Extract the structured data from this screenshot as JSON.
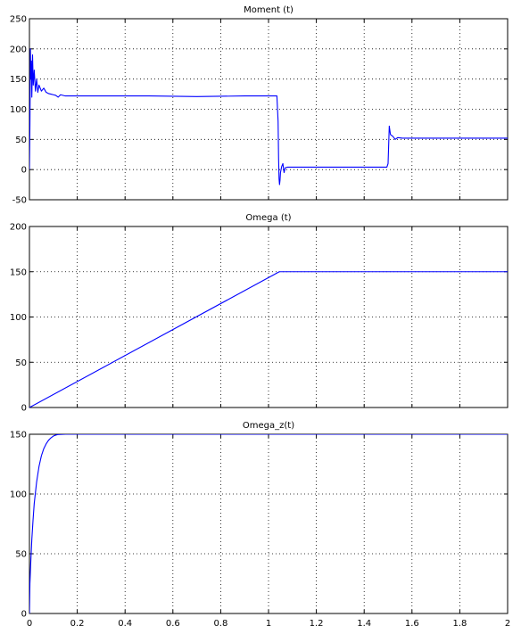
{
  "chart_data": [
    {
      "type": "line",
      "title": "Moment (t)",
      "xlabel": "",
      "ylabel": "",
      "xlim": [
        0,
        2
      ],
      "ylim": [
        -50,
        250
      ],
      "xticks": [
        0,
        0.2,
        0.4,
        0.6,
        0.8,
        1,
        1.2,
        1.4,
        1.6,
        1.8,
        2
      ],
      "yticks": [
        -50,
        0,
        50,
        100,
        150,
        200,
        250
      ],
      "show_xtick_labels": false,
      "grid": true,
      "color": "#0000ff",
      "series": [
        {
          "x": [
            0,
            0.002,
            0.004,
            0.006,
            0.008,
            0.01,
            0.013,
            0.016,
            0.02,
            0.025,
            0.03,
            0.035,
            0.04,
            0.05,
            0.06,
            0.07,
            0.08,
            0.09,
            0.1,
            0.11,
            0.12,
            0.13,
            0.15,
            0.2,
            0.3,
            0.5,
            0.7,
            0.9,
            1.035,
            1.04,
            1.042,
            1.044,
            1.046,
            1.048,
            1.05,
            1.055,
            1.06,
            1.065,
            1.07,
            1.08,
            1.09,
            1.1,
            1.2,
            1.3,
            1.4,
            1.495,
            1.5,
            1.505,
            1.51,
            1.52,
            1.53,
            1.54,
            1.56,
            1.6,
            1.8,
            2
          ],
          "y": [
            0,
            75,
            200,
            150,
            180,
            120,
            190,
            140,
            165,
            130,
            150,
            128,
            140,
            130,
            135,
            128,
            126,
            125,
            124,
            123,
            120,
            124,
            122,
            122,
            122,
            122,
            121,
            122,
            122,
            80,
            20,
            -15,
            -25,
            -18,
            -5,
            5,
            10,
            -5,
            3,
            4,
            4,
            4,
            4,
            4,
            4,
            4,
            10,
            72,
            58,
            55,
            50,
            53,
            52,
            52,
            52,
            52
          ]
        }
      ]
    },
    {
      "type": "line",
      "title": "Omega (t)",
      "xlabel": "",
      "ylabel": "",
      "xlim": [
        0,
        2
      ],
      "ylim": [
        0,
        200
      ],
      "xticks": [
        0,
        0.2,
        0.4,
        0.6,
        0.8,
        1,
        1.2,
        1.4,
        1.6,
        1.8,
        2
      ],
      "yticks": [
        0,
        50,
        100,
        150,
        200
      ],
      "show_xtick_labels": false,
      "grid": true,
      "color": "#0000ff",
      "series": [
        {
          "x": [
            0,
            1.045,
            2
          ],
          "y": [
            0,
            150,
            150
          ]
        }
      ]
    },
    {
      "type": "line",
      "title": "Omega_z(t)",
      "xlabel": "",
      "ylabel": "",
      "xlim": [
        0,
        2
      ],
      "ylim": [
        0,
        150
      ],
      "xticks": [
        0,
        0.2,
        0.4,
        0.6,
        0.8,
        1,
        1.2,
        1.4,
        1.6,
        1.8,
        2
      ],
      "yticks": [
        0,
        50,
        100,
        150
      ],
      "show_xtick_labels": true,
      "grid": true,
      "color": "#0000ff",
      "series": [
        {
          "x": [
            0,
            0.002,
            0.004,
            0.006,
            0.01,
            0.015,
            0.02,
            0.03,
            0.04,
            0.05,
            0.06,
            0.07,
            0.08,
            0.09,
            0.1,
            0.11,
            0.12,
            0.15,
            0.2,
            2
          ],
          "y": [
            0,
            25,
            35,
            45,
            62,
            78,
            92,
            110,
            123,
            132,
            138,
            142,
            145,
            147,
            148.5,
            149.3,
            149.8,
            150,
            150,
            150
          ]
        }
      ]
    }
  ]
}
